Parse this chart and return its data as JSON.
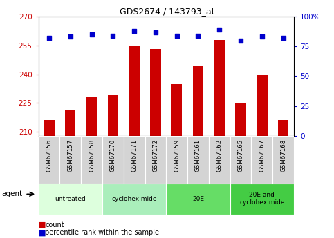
{
  "title": "GDS2674 / 143793_at",
  "samples": [
    "GSM67156",
    "GSM67157",
    "GSM67158",
    "GSM67170",
    "GSM67171",
    "GSM67172",
    "GSM67159",
    "GSM67161",
    "GSM67162",
    "GSM67165",
    "GSM67167",
    "GSM67168"
  ],
  "bar_values": [
    216,
    221,
    228,
    229,
    255,
    253,
    235,
    244,
    258,
    225,
    240,
    216
  ],
  "percentile_values": [
    82,
    83,
    85,
    84,
    88,
    87,
    84,
    84,
    89,
    80,
    83,
    82
  ],
  "ylim_left": [
    208,
    270
  ],
  "ylim_right": [
    0,
    100
  ],
  "yticks_left": [
    210,
    225,
    240,
    255,
    270
  ],
  "yticks_right": [
    0,
    25,
    50,
    75,
    100
  ],
  "bar_color": "#cc0000",
  "dot_color": "#0000cc",
  "bar_bottom": 208,
  "agent_groups": [
    {
      "label": "untreated",
      "start": 0,
      "end": 3,
      "color": "#ddffdd"
    },
    {
      "label": "cycloheximide",
      "start": 3,
      "end": 6,
      "color": "#aaeebb"
    },
    {
      "label": "20E",
      "start": 6,
      "end": 9,
      "color": "#66dd66"
    },
    {
      "label": "20E and\ncycloheximide",
      "start": 9,
      "end": 12,
      "color": "#44cc44"
    }
  ],
  "legend_labels": [
    "count",
    "percentile rank within the sample"
  ],
  "legend_colors": [
    "#cc0000",
    "#0000cc"
  ],
  "grid_style": "dotted",
  "agent_label": "agent",
  "tick_label_color_left": "#cc0000",
  "tick_label_color_right": "#0000cc",
  "title_fontsize": 9,
  "bar_width": 0.5,
  "sample_bg_color": "#d4d4d4",
  "sample_border_color": "#ffffff"
}
